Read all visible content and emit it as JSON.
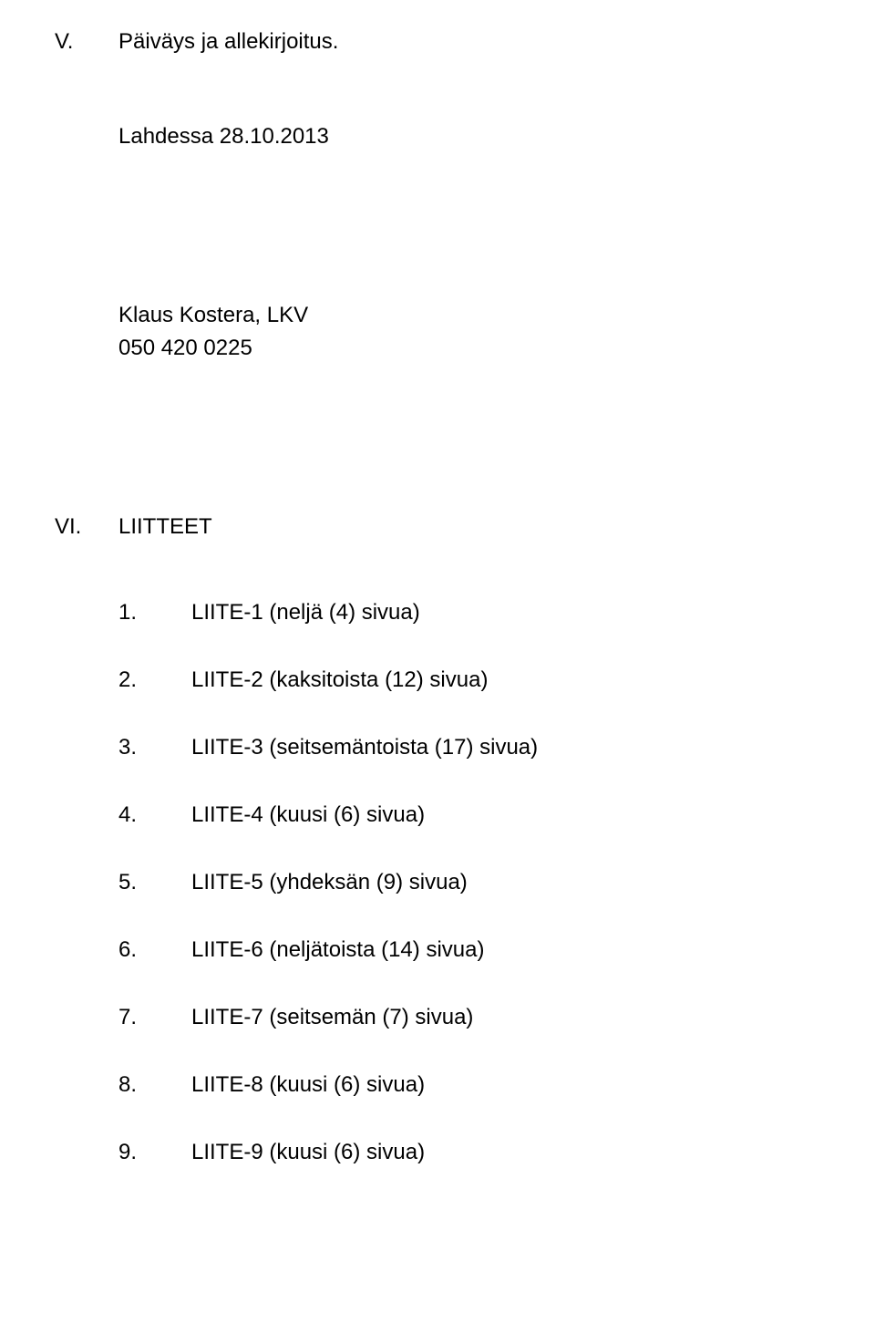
{
  "sections": {
    "v": {
      "numeral": "V.",
      "title": "Päiväys ja allekirjoitus.",
      "place_date": "Lahdessa  28.10.2013",
      "signer_name": "Klaus Kostera, LKV",
      "signer_phone": "050 420 0225"
    },
    "vi": {
      "numeral": "VI.",
      "title": "LIITTEET",
      "items": [
        {
          "num": "1.",
          "text": "LIITE-1 (neljä (4) sivua)"
        },
        {
          "num": "2.",
          "text": "LIITE-2 (kaksitoista (12) sivua)"
        },
        {
          "num": "3.",
          "text": "LIITE-3 (seitsemäntoista (17) sivua)"
        },
        {
          "num": "4.",
          "text": "LIITE-4 (kuusi (6) sivua)"
        },
        {
          "num": "5.",
          "text": "LIITE-5 (yhdeksän (9) sivua)"
        },
        {
          "num": "6.",
          "text": "LIITE-6 (neljätoista (14) sivua)"
        },
        {
          "num": "7.",
          "text": "LIITE-7 (seitsemän (7) sivua)"
        },
        {
          "num": "8.",
          "text": "LIITE-8 (kuusi (6) sivua)"
        },
        {
          "num": "9.",
          "text": "LIITE-9 (kuusi (6) sivua)"
        }
      ]
    }
  },
  "style": {
    "font_family": "Arial",
    "font_size_pt": 18,
    "text_color": "#000000",
    "background_color": "#ffffff"
  }
}
